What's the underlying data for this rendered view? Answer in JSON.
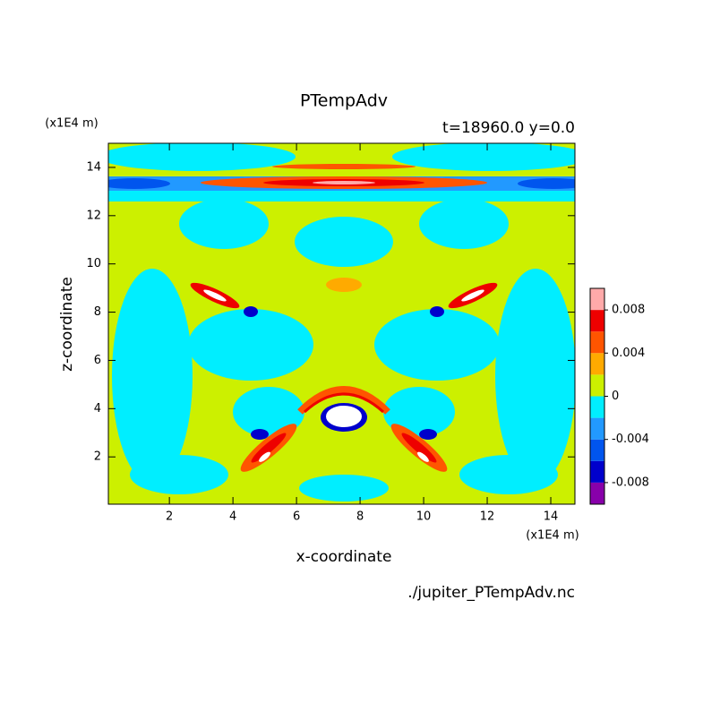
{
  "chart_data": {
    "type": "contour",
    "title": "PTempAdv",
    "subtitle": "t=18960.0 y=0.0",
    "x_label": "x-coordinate",
    "y_label": "z-coordinate",
    "x_unit": "(x1E4 m)",
    "y_unit": "(x1E4 m)",
    "source": "./jupiter_PTempAdv.nc",
    "xlim": [
      0.08,
      14.76
    ],
    "ylim": [
      0.04,
      15
    ],
    "xticks": [
      2,
      4,
      6,
      8,
      10,
      12,
      14
    ],
    "yticks": [
      2,
      4,
      6,
      8,
      10,
      12,
      14
    ],
    "colorbar": {
      "levels": [
        -0.01,
        -0.008,
        -0.006,
        -0.004,
        -0.002,
        0,
        0.002,
        0.004,
        0.006,
        0.008,
        0.01
      ],
      "colors": [
        "#8800aa",
        "#0000cc",
        "#0055ee",
        "#2299ff",
        "#00eeff",
        "#ccf000",
        "#ffaa00",
        "#ff5500",
        "#ee0000",
        "#ffaaaa"
      ],
      "ticks": [
        -0.008,
        -0.004,
        0,
        0.004,
        0.008
      ]
    }
  }
}
